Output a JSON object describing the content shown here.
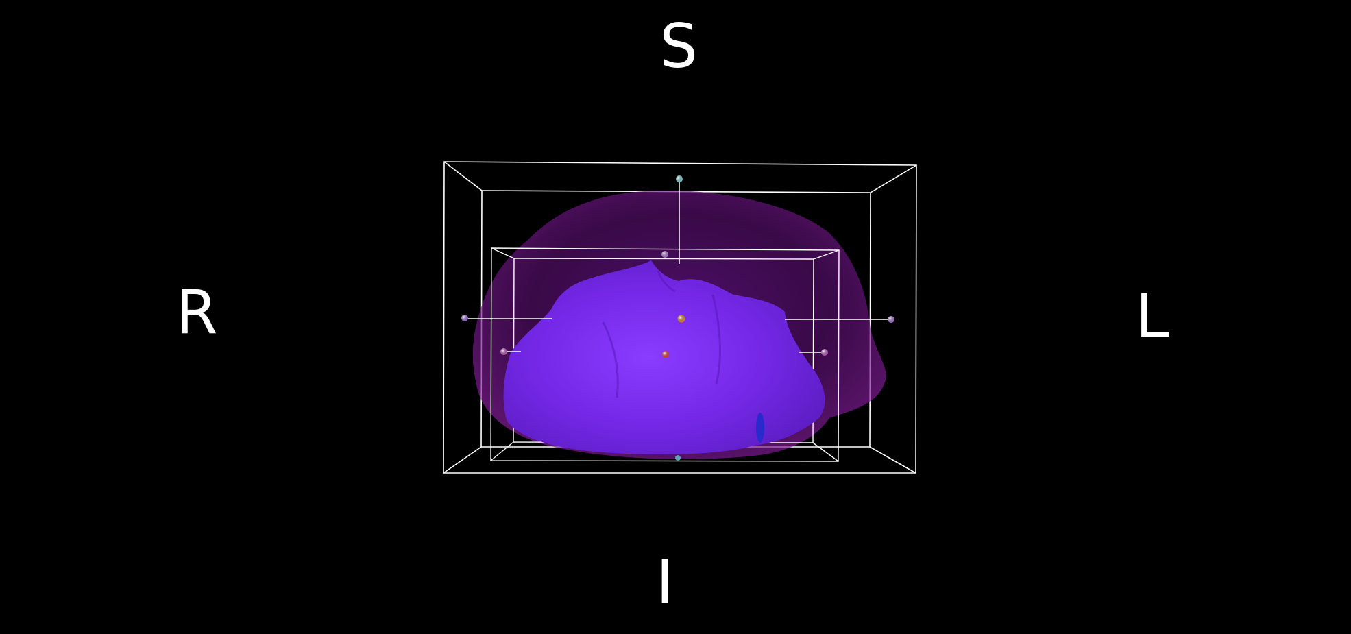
{
  "orientation": {
    "superior": "S",
    "inferior": "I",
    "right": "R",
    "left": "L"
  },
  "colors": {
    "background": "#000000",
    "box_outline": "#ffffff",
    "outer_surface": "#8a1fa0",
    "inner_surface": "#7a2df0",
    "handle_cyan": "#7fd0d0",
    "handle_violet": "#b07ad8",
    "handle_magenta": "#c060c0",
    "center_orange": "#e08a1a",
    "center_red": "#e8402a",
    "dark_blue_detail": "#2a2acc"
  },
  "icons": {
    "center_marker": "orange-dot",
    "secondary_marker": "red-dot",
    "handles": "sphere-handles"
  }
}
